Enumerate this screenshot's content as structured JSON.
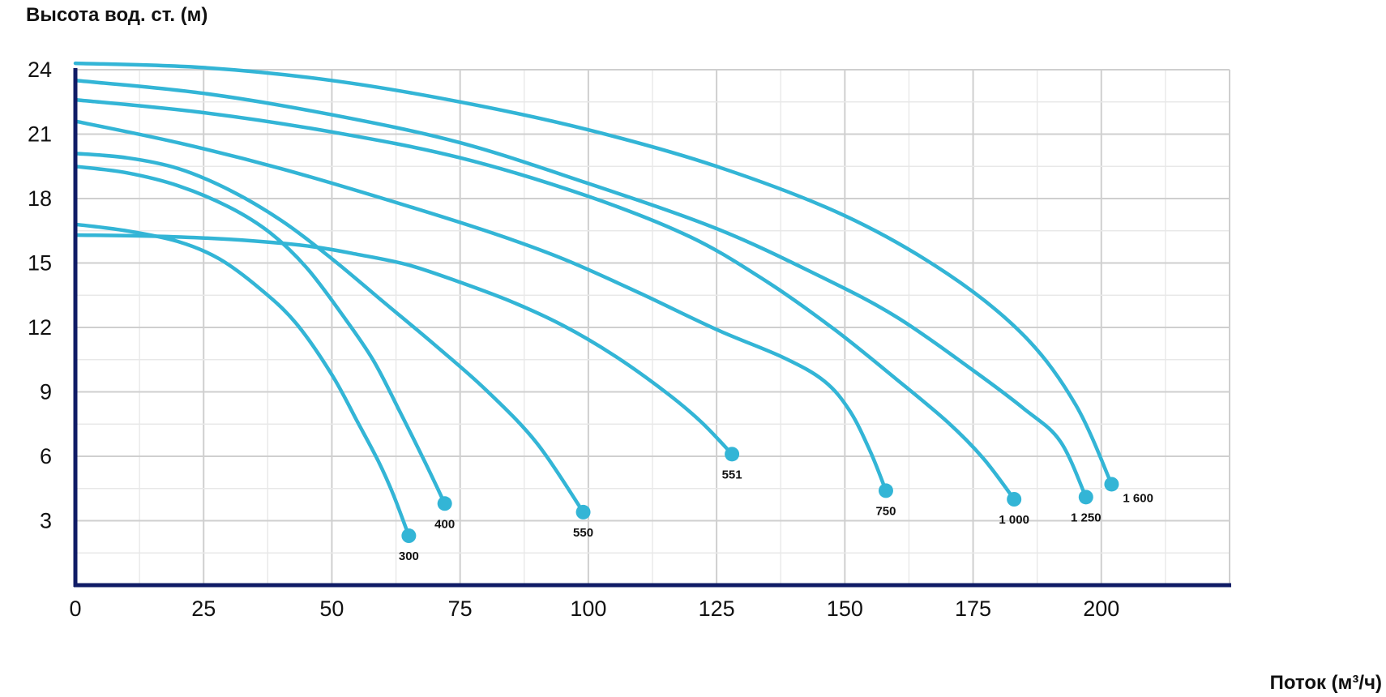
{
  "chart_data": {
    "type": "line",
    "title": "",
    "ylabel": "Высота вод. ст. (м)",
    "xlabel": "Поток (м³/ч)",
    "xlim": [
      0,
      225
    ],
    "ylim": [
      0,
      24
    ],
    "xticks": [
      0,
      25,
      50,
      75,
      100,
      125,
      150,
      175,
      200
    ],
    "yticks": [
      3,
      6,
      9,
      12,
      15,
      18,
      21,
      24
    ],
    "x_minor_step": 12.5,
    "y_minor_step": 1.5,
    "grid": true,
    "colors": {
      "line": "#33b5d6",
      "axis": "#101c66",
      "grid": "#cfcfcf",
      "grid_minor": "#e8e8e8"
    },
    "series": [
      {
        "name": "300",
        "points": [
          [
            0,
            16.8
          ],
          [
            10,
            16.5
          ],
          [
            20,
            16.0
          ],
          [
            28,
            15.2
          ],
          [
            36,
            13.8
          ],
          [
            43,
            12.2
          ],
          [
            50,
            9.8
          ],
          [
            55,
            7.6
          ],
          [
            59,
            5.8
          ],
          [
            62,
            4.2
          ],
          [
            65,
            2.3
          ]
        ]
      },
      {
        "name": "400",
        "points": [
          [
            0,
            19.5
          ],
          [
            10,
            19.2
          ],
          [
            20,
            18.6
          ],
          [
            30,
            17.6
          ],
          [
            38,
            16.4
          ],
          [
            45,
            14.8
          ],
          [
            52,
            12.6
          ],
          [
            58,
            10.5
          ],
          [
            63,
            8.2
          ],
          [
            68,
            5.8
          ],
          [
            72,
            3.8
          ]
        ]
      },
      {
        "name": "550",
        "points": [
          [
            0,
            20.1
          ],
          [
            10,
            19.9
          ],
          [
            20,
            19.4
          ],
          [
            30,
            18.4
          ],
          [
            40,
            17.0
          ],
          [
            50,
            15.2
          ],
          [
            60,
            13.2
          ],
          [
            70,
            11.2
          ],
          [
            80,
            9.1
          ],
          [
            90,
            6.6
          ],
          [
            99,
            3.4
          ]
        ]
      },
      {
        "name": "551",
        "points": [
          [
            0,
            16.3
          ],
          [
            15,
            16.25
          ],
          [
            30,
            16.1
          ],
          [
            45,
            15.8
          ],
          [
            55,
            15.4
          ],
          [
            65,
            14.9
          ],
          [
            75,
            14.1
          ],
          [
            85,
            13.2
          ],
          [
            95,
            12.1
          ],
          [
            105,
            10.7
          ],
          [
            115,
            9.0
          ],
          [
            122,
            7.6
          ],
          [
            128,
            6.1
          ]
        ]
      },
      {
        "name": "750",
        "points": [
          [
            0,
            21.6
          ],
          [
            20,
            20.6
          ],
          [
            40,
            19.4
          ],
          [
            60,
            18.0
          ],
          [
            80,
            16.5
          ],
          [
            95,
            15.2
          ],
          [
            110,
            13.6
          ],
          [
            125,
            11.9
          ],
          [
            138,
            10.6
          ],
          [
            146,
            9.5
          ],
          [
            151,
            8.1
          ],
          [
            155,
            6.2
          ],
          [
            158,
            4.4
          ]
        ]
      },
      {
        "name": "1 000",
        "points": [
          [
            0,
            22.6
          ],
          [
            25,
            22.0
          ],
          [
            50,
            21.1
          ],
          [
            75,
            19.9
          ],
          [
            100,
            18.1
          ],
          [
            120,
            16.2
          ],
          [
            135,
            14.1
          ],
          [
            148,
            11.9
          ],
          [
            160,
            9.6
          ],
          [
            170,
            7.6
          ],
          [
            177,
            5.9
          ],
          [
            183,
            4.0
          ]
        ]
      },
      {
        "name": "1 250",
        "points": [
          [
            0,
            23.5
          ],
          [
            25,
            22.9
          ],
          [
            50,
            21.9
          ],
          [
            75,
            20.6
          ],
          [
            100,
            18.7
          ],
          [
            125,
            16.6
          ],
          [
            145,
            14.4
          ],
          [
            160,
            12.5
          ],
          [
            175,
            10.0
          ],
          [
            185,
            8.2
          ],
          [
            192,
            6.7
          ],
          [
            197,
            4.1
          ]
        ]
      },
      {
        "name": "1 600",
        "points": [
          [
            0,
            24.3
          ],
          [
            25,
            24.1
          ],
          [
            50,
            23.5
          ],
          [
            75,
            22.5
          ],
          [
            100,
            21.2
          ],
          [
            125,
            19.5
          ],
          [
            150,
            17.2
          ],
          [
            170,
            14.5
          ],
          [
            185,
            11.6
          ],
          [
            195,
            8.4
          ],
          [
            202,
            4.7
          ]
        ]
      }
    ]
  }
}
